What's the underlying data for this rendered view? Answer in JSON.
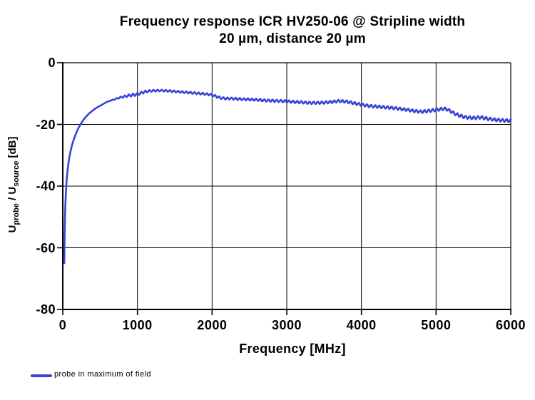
{
  "title": {
    "line1": "Frequency response ICR HV250-06 @ Stripline width",
    "line2": "20 µm, distance 20 µm"
  },
  "axes": {
    "x": {
      "label": "Frequency [MHz]",
      "min": 0,
      "max": 6000,
      "ticks": [
        0,
        1000,
        2000,
        3000,
        4000,
        5000,
        6000
      ]
    },
    "y": {
      "label_parts": {
        "u1": "U",
        "sub1": "probe",
        "mid": " / U",
        "sub2": "source",
        "unit": " [dB]"
      },
      "min": -80,
      "max": 0,
      "ticks": [
        0,
        -20,
        -40,
        -60,
        -80
      ]
    }
  },
  "legend": {
    "label": "probe in maximum of field"
  },
  "colors": {
    "line": "#3645d4",
    "grid": "#000000",
    "axis": "#000000",
    "background": "#ffffff"
  },
  "chart_data": {
    "type": "line",
    "title": "Frequency response ICR HV250-06 @ Stripline width 20 µm, distance 20 µm",
    "xlabel": "Frequency [MHz]",
    "ylabel": "Uprobe / Usource [dB]",
    "xlim": [
      0,
      6000
    ],
    "ylim": [
      -80,
      0
    ],
    "grid": true,
    "legend_position": "bottom-left",
    "series": [
      {
        "name": "probe in maximum of field",
        "color": "#3645d4",
        "points": [
          [
            20,
            -65
          ],
          [
            22,
            -61
          ],
          [
            24,
            -57.5
          ],
          [
            26,
            -54.5
          ],
          [
            28,
            -52
          ],
          [
            31,
            -49
          ],
          [
            34,
            -46.5
          ],
          [
            38,
            -44
          ],
          [
            42,
            -42
          ],
          [
            46,
            -40.3
          ],
          [
            50,
            -38.8
          ],
          [
            55,
            -37.3
          ],
          [
            60,
            -36
          ],
          [
            67,
            -34.4
          ],
          [
            75,
            -32.8
          ],
          [
            85,
            -31.2
          ],
          [
            95,
            -29.8
          ],
          [
            105,
            -28.6
          ],
          [
            120,
            -27.1
          ],
          [
            135,
            -25.8
          ],
          [
            150,
            -24.7
          ],
          [
            170,
            -23.4
          ],
          [
            190,
            -22.2
          ],
          [
            210,
            -21.2
          ],
          [
            230,
            -20.3
          ],
          [
            250,
            -19.5
          ],
          [
            275,
            -18.6
          ],
          [
            300,
            -17.8
          ],
          [
            330,
            -17
          ],
          [
            360,
            -16.3
          ],
          [
            400,
            -15.5
          ],
          [
            440,
            -14.8
          ],
          [
            480,
            -14.2
          ],
          [
            520,
            -13.7
          ],
          [
            560,
            -13.1
          ],
          [
            600,
            -12.6
          ],
          [
            650,
            -12.2
          ],
          [
            700,
            -11.8
          ],
          [
            750,
            -11.4
          ],
          [
            800,
            -11.1
          ],
          [
            850,
            -10.8
          ],
          [
            900,
            -10.6
          ],
          [
            950,
            -10.4
          ],
          [
            1000,
            -10.2
          ],
          [
            1050,
            -9.8
          ],
          [
            1100,
            -9.4
          ],
          [
            1150,
            -9.2
          ],
          [
            1200,
            -9.1
          ],
          [
            1300,
            -9
          ],
          [
            1400,
            -9.1
          ],
          [
            1500,
            -9.3
          ],
          [
            1600,
            -9.5
          ],
          [
            1700,
            -9.7
          ],
          [
            1800,
            -9.9
          ],
          [
            1900,
            -10.1
          ],
          [
            2000,
            -10.4
          ],
          [
            2060,
            -11
          ],
          [
            2120,
            -11.4
          ],
          [
            2180,
            -11.6
          ],
          [
            2250,
            -11.6
          ],
          [
            2320,
            -11.7
          ],
          [
            2400,
            -11.8
          ],
          [
            2500,
            -11.9
          ],
          [
            2600,
            -12
          ],
          [
            2700,
            -12.2
          ],
          [
            2800,
            -12.3
          ],
          [
            2900,
            -12.4
          ],
          [
            3000,
            -12.5
          ],
          [
            3100,
            -12.7
          ],
          [
            3200,
            -12.8
          ],
          [
            3300,
            -13
          ],
          [
            3400,
            -13
          ],
          [
            3500,
            -12.9
          ],
          [
            3600,
            -12.7
          ],
          [
            3700,
            -12.4
          ],
          [
            3800,
            -12.6
          ],
          [
            3900,
            -13.1
          ],
          [
            4000,
            -13.6
          ],
          [
            4100,
            -14
          ],
          [
            4200,
            -14.2
          ],
          [
            4300,
            -14.4
          ],
          [
            4400,
            -14.6
          ],
          [
            4500,
            -14.9
          ],
          [
            4600,
            -15.2
          ],
          [
            4700,
            -15.6
          ],
          [
            4800,
            -15.9
          ],
          [
            4900,
            -15.6
          ],
          [
            5000,
            -15.3
          ],
          [
            5100,
            -14.9
          ],
          [
            5150,
            -15.1
          ],
          [
            5200,
            -15.8
          ],
          [
            5250,
            -16.5
          ],
          [
            5300,
            -17
          ],
          [
            5350,
            -17.4
          ],
          [
            5400,
            -17.7
          ],
          [
            5500,
            -17.9
          ],
          [
            5600,
            -17.7
          ],
          [
            5700,
            -18.2
          ],
          [
            5800,
            -18.5
          ],
          [
            5900,
            -18.7
          ],
          [
            6000,
            -18.8
          ]
        ],
        "ripple": {
          "period_mhz": 55,
          "phase": 1.0,
          "amplitude_db_by_freq": [
            [
              600,
              0
            ],
            [
              700,
              0.15
            ],
            [
              850,
              0.35
            ],
            [
              950,
              0.45
            ],
            [
              1050,
              0.4
            ],
            [
              1200,
              0.3
            ],
            [
              1600,
              0.3
            ],
            [
              2200,
              0.35
            ],
            [
              3000,
              0.4
            ],
            [
              4500,
              0.45
            ],
            [
              5300,
              0.5
            ],
            [
              6000,
              0.5
            ]
          ]
        }
      }
    ]
  }
}
